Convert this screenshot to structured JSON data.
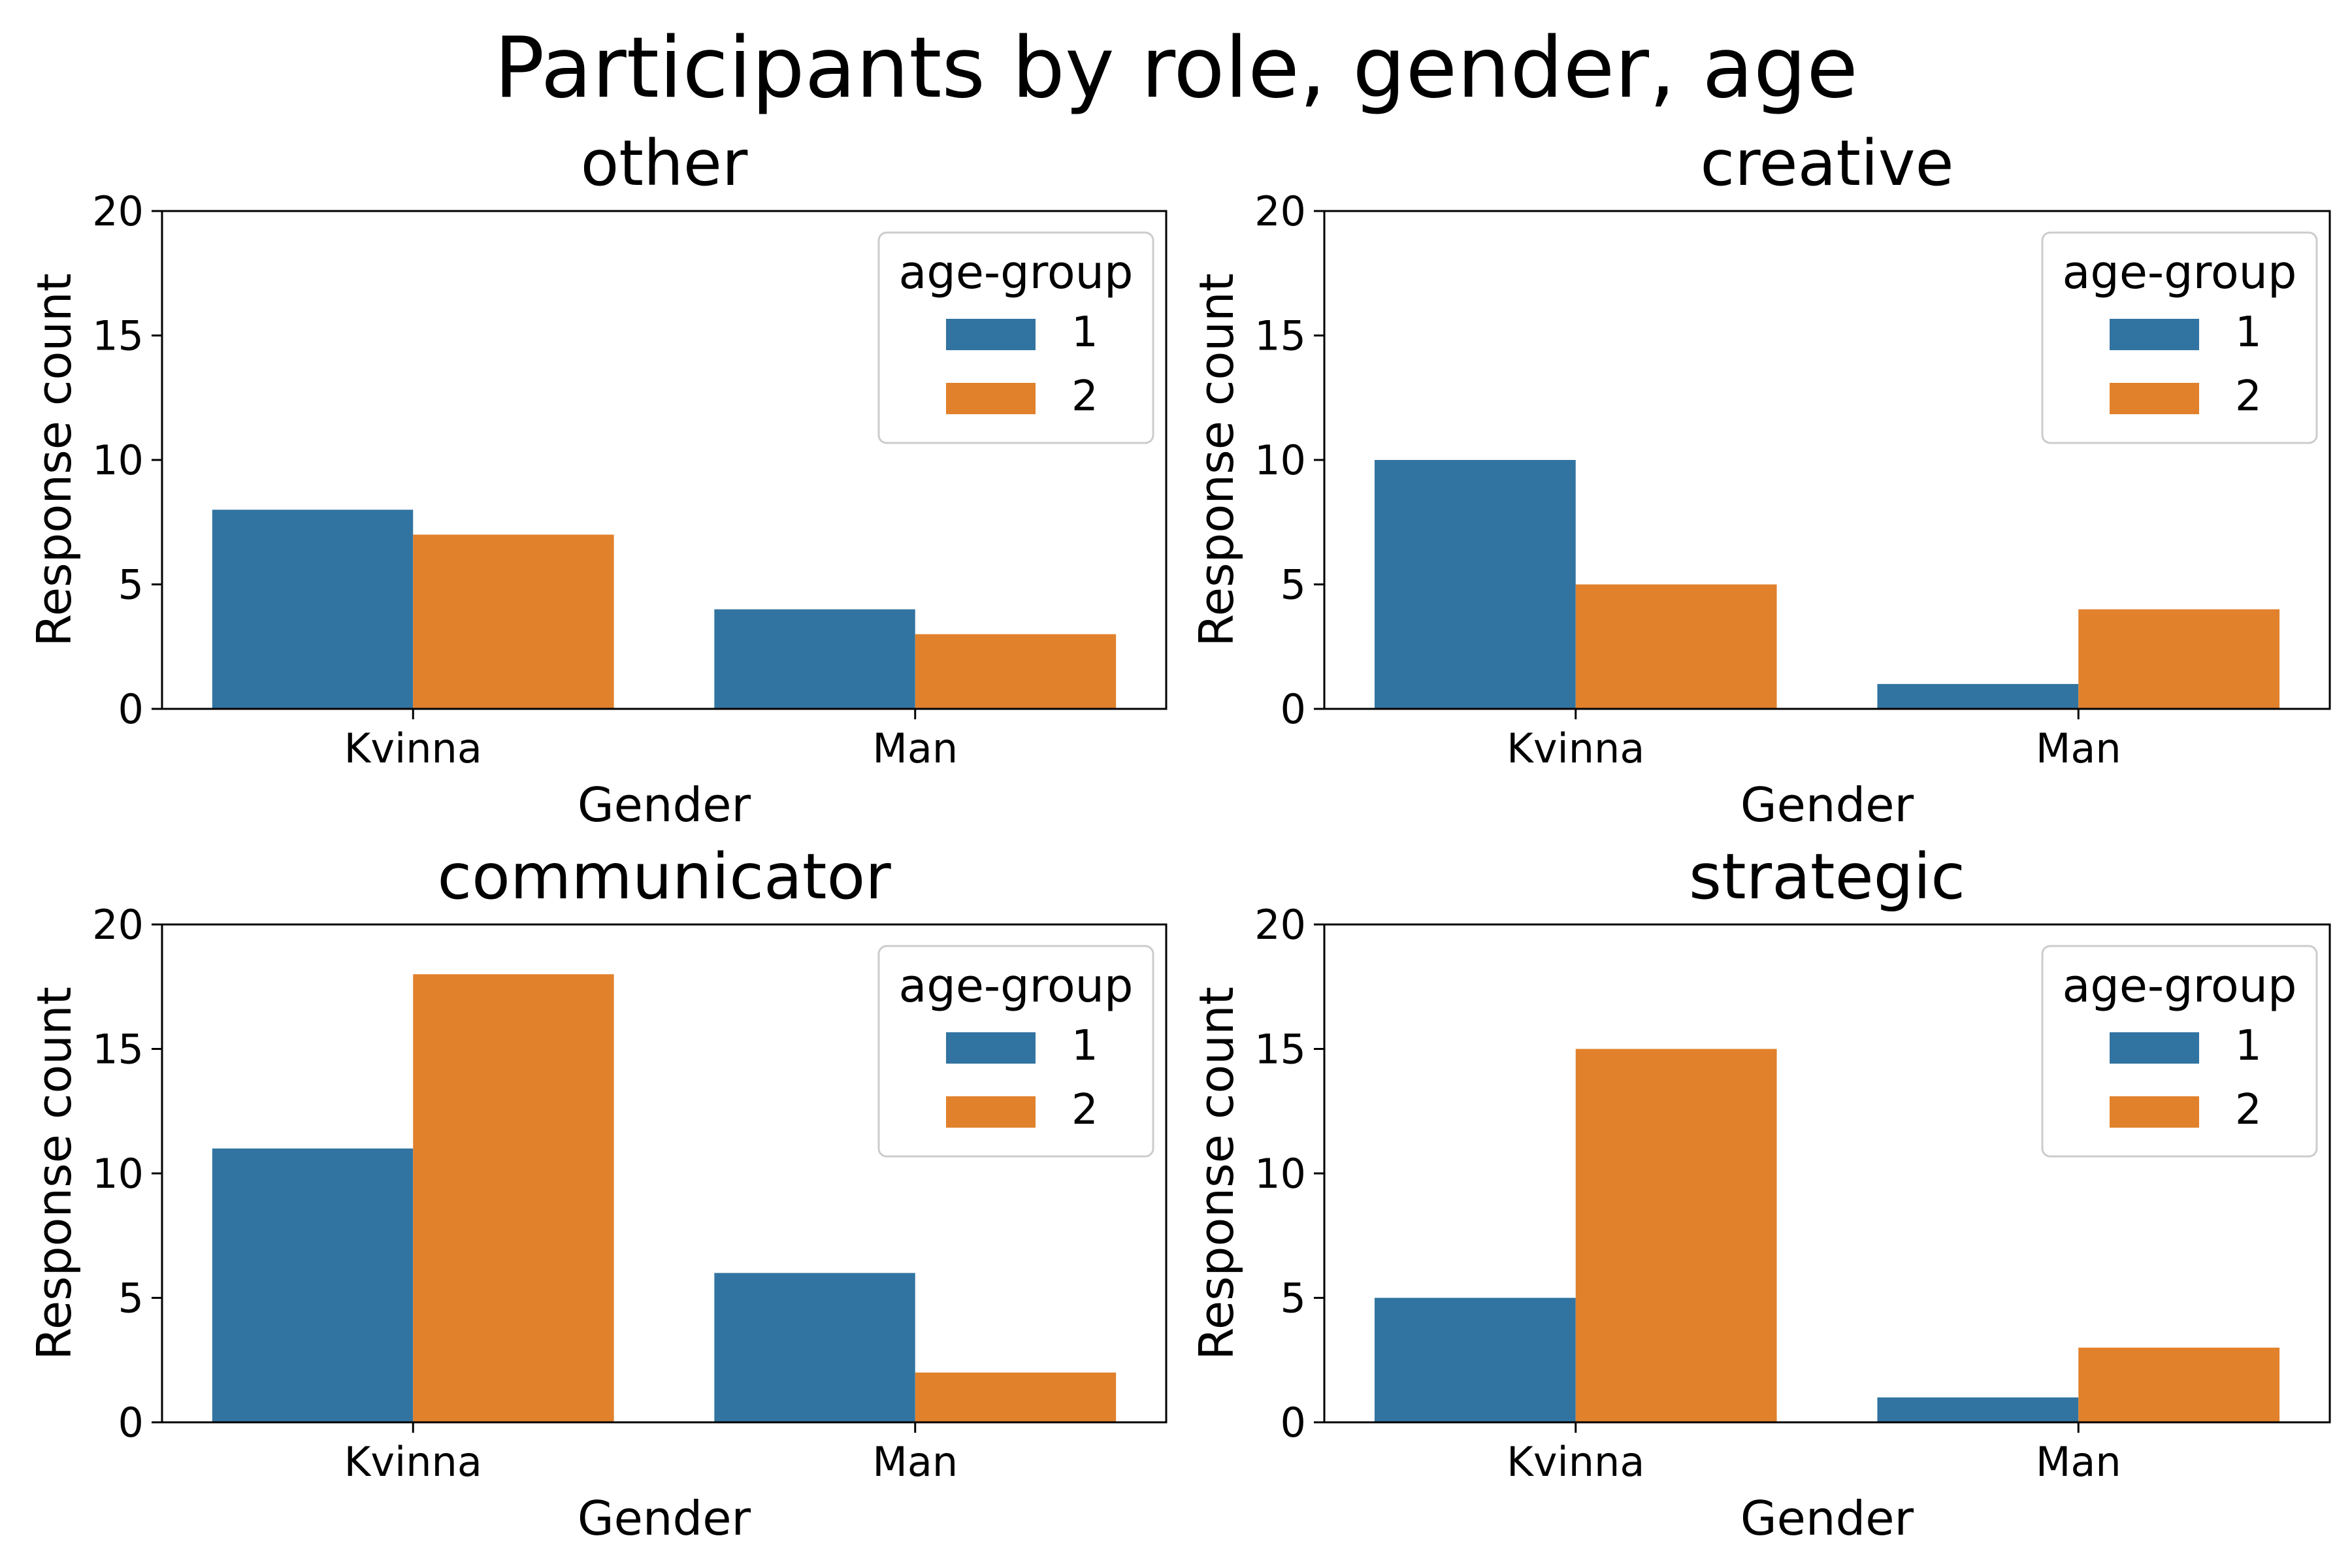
{
  "title": "Participants by role, gender, age",
  "colors": {
    "age_1": "#3274a1",
    "age_2": "#e1812c"
  },
  "chart_data": [
    {
      "type": "bar",
      "title": "other",
      "categories": [
        "Kvinna",
        "Man"
      ],
      "series": [
        {
          "name": "1",
          "values": [
            8,
            4
          ]
        },
        {
          "name": "2",
          "values": [
            7,
            3
          ]
        }
      ],
      "xlabel": "Gender",
      "ylabel": "Response count",
      "ylim": [
        0,
        20
      ],
      "yticks": [
        0,
        5,
        10,
        15,
        20
      ],
      "legend": {
        "title": "age-group",
        "position": "top-right"
      },
      "grid": false
    },
    {
      "type": "bar",
      "title": "creative",
      "categories": [
        "Kvinna",
        "Man"
      ],
      "series": [
        {
          "name": "1",
          "values": [
            10,
            1
          ]
        },
        {
          "name": "2",
          "values": [
            5,
            4
          ]
        }
      ],
      "xlabel": "Gender",
      "ylabel": "Response count",
      "ylim": [
        0,
        20
      ],
      "yticks": [
        0,
        5,
        10,
        15,
        20
      ],
      "legend": {
        "title": "age-group",
        "position": "top-right"
      },
      "grid": false
    },
    {
      "type": "bar",
      "title": "communicator",
      "categories": [
        "Kvinna",
        "Man"
      ],
      "series": [
        {
          "name": "1",
          "values": [
            11,
            6
          ]
        },
        {
          "name": "2",
          "values": [
            18,
            2
          ]
        }
      ],
      "xlabel": "Gender",
      "ylabel": "Response count",
      "ylim": [
        0,
        20
      ],
      "yticks": [
        0,
        5,
        10,
        15,
        20
      ],
      "legend": {
        "title": "age-group",
        "position": "top-right"
      },
      "grid": false
    },
    {
      "type": "bar",
      "title": "strategic",
      "categories": [
        "Kvinna",
        "Man"
      ],
      "series": [
        {
          "name": "1",
          "values": [
            5,
            1
          ]
        },
        {
          "name": "2",
          "values": [
            15,
            3
          ]
        }
      ],
      "xlabel": "Gender",
      "ylabel": "Response count",
      "ylim": [
        0,
        20
      ],
      "yticks": [
        0,
        5,
        10,
        15,
        20
      ],
      "legend": {
        "title": "age-group",
        "position": "top-right"
      },
      "grid": false
    }
  ]
}
